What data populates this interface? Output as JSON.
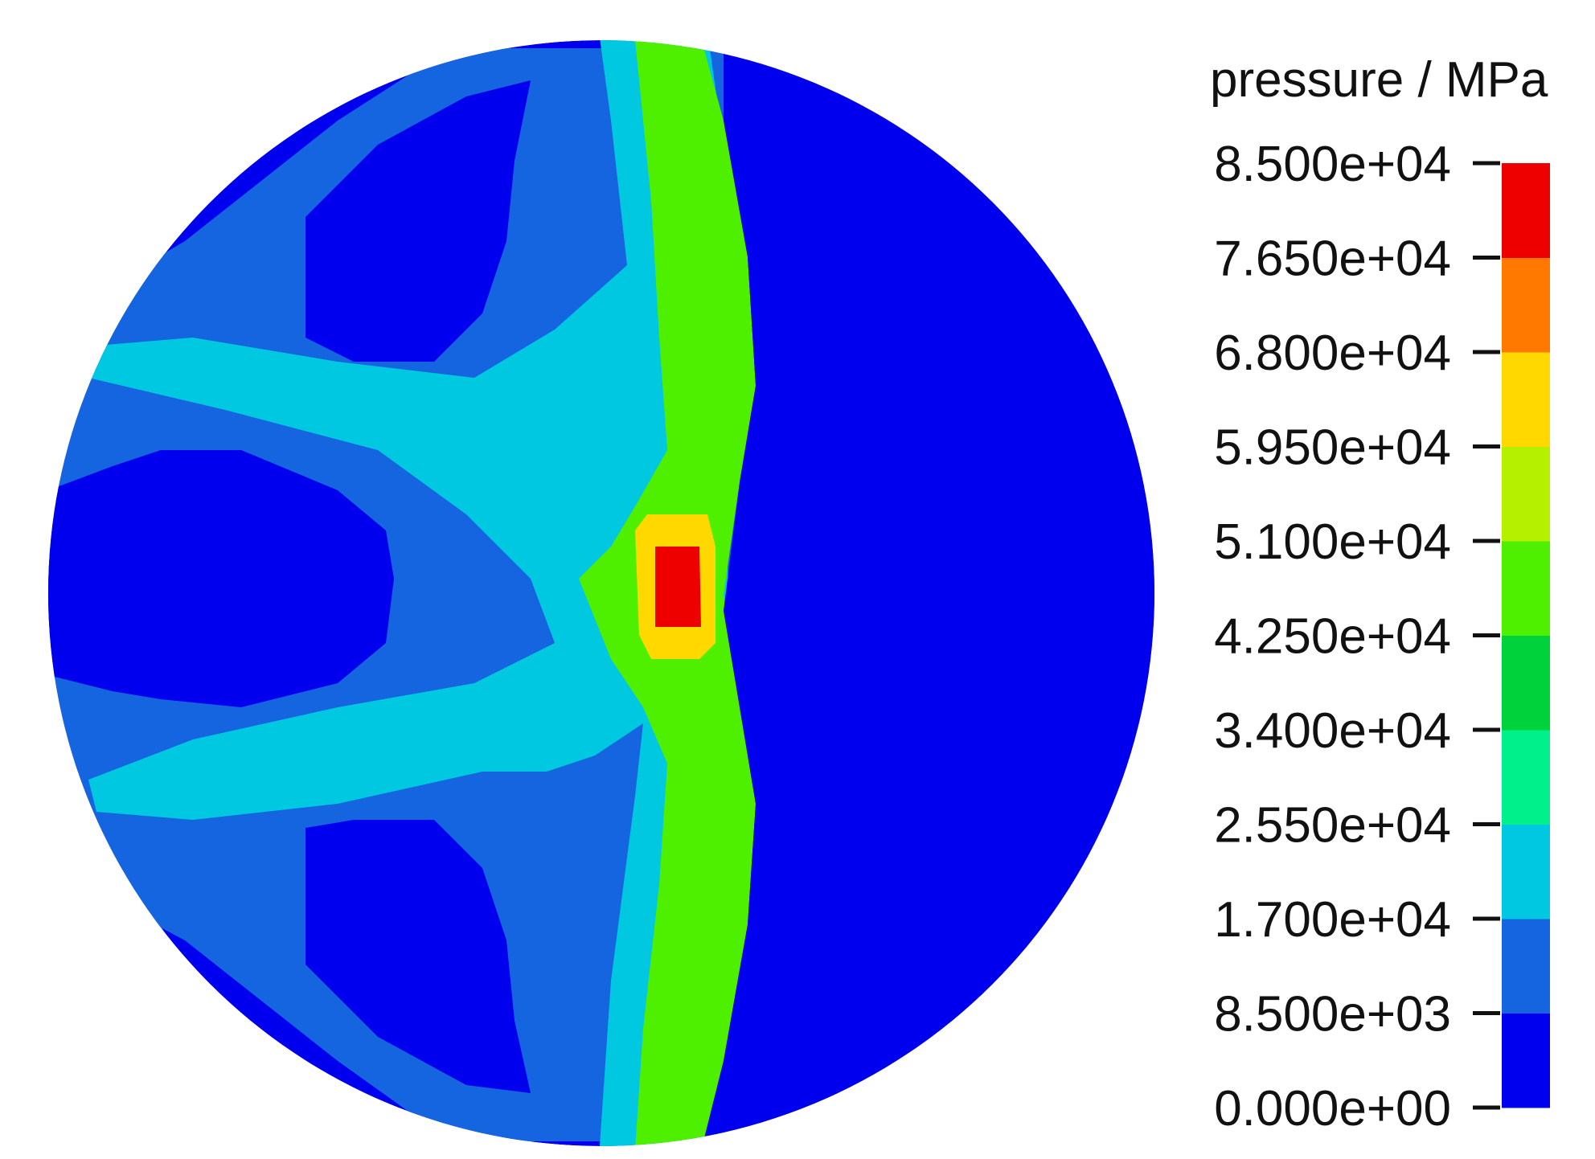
{
  "chart_data": {
    "type": "heatmap",
    "title": "",
    "colorbar": {
      "title": "pressure / MPa",
      "range": [
        0,
        85000
      ],
      "tick_values": [
        0,
        8500,
        17000,
        25500,
        34000,
        42500,
        51000,
        59500,
        68000,
        76500,
        85000
      ],
      "tick_labels": [
        "0.000e+00",
        "8.500e+03",
        "1.700e+04",
        "2.550e+04",
        "3.400e+04",
        "4.250e+04",
        "5.100e+04",
        "5.950e+04",
        "6.800e+04",
        "7.650e+04",
        "8.500e+04"
      ],
      "colors": [
        "#0000ee",
        "#1565e0",
        "#00c8e0",
        "#00f08c",
        "#00d23c",
        "#4ef000",
        "#b4f000",
        "#ffd800",
        "#ff7800",
        "#ee0000"
      ],
      "placement": "right"
    },
    "field": {
      "shape": "disk",
      "background_value": 4250,
      "regions": [
        {
          "name": "right-half",
          "value": 4250
        },
        {
          "name": "left-lobe",
          "value": 12750
        },
        {
          "name": "left-core",
          "value": 4250
        },
        {
          "name": "upper-arm",
          "value": 21250
        },
        {
          "name": "lower-arm",
          "value": 21250
        },
        {
          "name": "vertical-band",
          "value": 21250
        },
        {
          "name": "contact-band",
          "value": 42500
        },
        {
          "name": "peak-halo",
          "value": 63750
        },
        {
          "name": "peak-core",
          "value": 80750
        }
      ]
    }
  }
}
